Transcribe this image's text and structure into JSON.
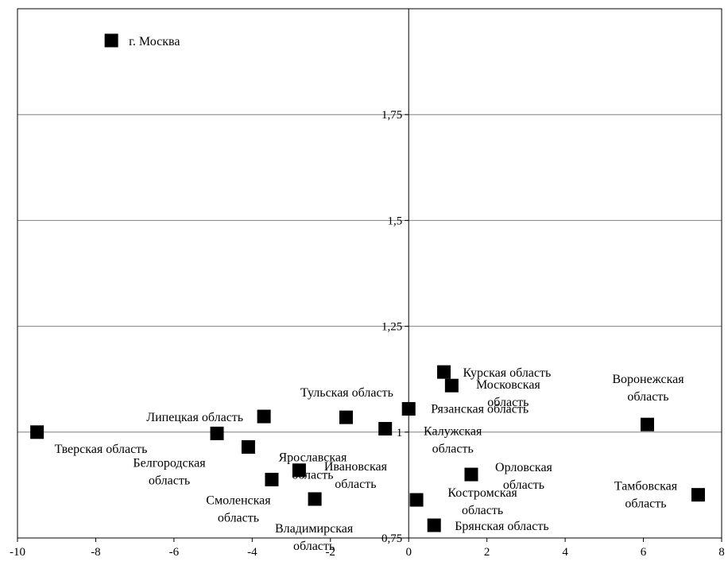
{
  "chart_data": {
    "type": "scatter",
    "title": "",
    "xlabel": "",
    "ylabel": "",
    "xlim": [
      -10,
      8
    ],
    "ylim": [
      0.75,
      2.0
    ],
    "x_ticks": [
      -10,
      -8,
      -6,
      -4,
      -2,
      0,
      2,
      4,
      6,
      8
    ],
    "x_tick_labels": [
      "-10",
      "-8",
      "-6",
      "-4",
      "-2",
      "0",
      "2",
      "4",
      "6",
      "8"
    ],
    "y_ticks": [
      0.75,
      1.0,
      1.25,
      1.5,
      1.75
    ],
    "y_tick_labels": [
      "0,75",
      "1",
      "1,25",
      "1,5",
      "1,75"
    ],
    "grid": "horizontal",
    "marker": "square",
    "marker_color": "#000000",
    "points": [
      {
        "label": "г. Москва",
        "x": -7.6,
        "y": 1.925,
        "label_lines": [
          "г. Москва"
        ]
      },
      {
        "label": "Тверская область",
        "x": -9.5,
        "y": 1.0,
        "label_lines": [
          "Тверская область"
        ]
      },
      {
        "label": "Липецкая область",
        "x": -3.7,
        "y": 1.037,
        "label_lines": [
          "Липецкая область"
        ]
      },
      {
        "label": "Белгородская область",
        "x": -4.9,
        "y": 0.997,
        "label_lines": [
          "Белгородская",
          "область"
        ]
      },
      {
        "label": "Ярославская область",
        "x": -4.1,
        "y": 0.965,
        "label_lines": [
          "Ярославская",
          "область"
        ]
      },
      {
        "label": "Смоленская область",
        "x": -3.5,
        "y": 0.888,
        "label_lines": [
          "Смоленская",
          "область"
        ]
      },
      {
        "label": "Ивановская область",
        "x": -2.8,
        "y": 0.91,
        "label_lines": [
          "Ивановская",
          "область"
        ]
      },
      {
        "label": "Владимирская область",
        "x": -2.4,
        "y": 0.842,
        "label_lines": [
          "Владимирская",
          "область"
        ]
      },
      {
        "label": "Тульская область",
        "x": -1.6,
        "y": 1.035,
        "label_lines": [
          "Тульская область"
        ]
      },
      {
        "label": "Калужская область",
        "x": -0.6,
        "y": 1.008,
        "label_lines": [
          "Калужская",
          "область"
        ]
      },
      {
        "label": "Рязанская область",
        "x": 0.0,
        "y": 1.055,
        "label_lines": [
          "Рязанская область"
        ]
      },
      {
        "label": "Курская область",
        "x": 0.9,
        "y": 1.142,
        "label_lines": [
          "Курская область"
        ]
      },
      {
        "label": "Московская область",
        "x": 1.1,
        "y": 1.11,
        "label_lines": [
          "Московская",
          "область"
        ]
      },
      {
        "label": "Костромская область",
        "x": 0.2,
        "y": 0.84,
        "label_lines": [
          "Костромская",
          "область"
        ]
      },
      {
        "label": "Брянская область",
        "x": 0.65,
        "y": 0.78,
        "label_lines": [
          "Брянская область"
        ]
      },
      {
        "label": "Орловская область",
        "x": 1.6,
        "y": 0.9,
        "label_lines": [
          "Орловская",
          "область"
        ]
      },
      {
        "label": "Воронежская область",
        "x": 6.1,
        "y": 1.018,
        "label_lines": [
          "Воронежская",
          "область"
        ]
      },
      {
        "label": "Тамбовская область",
        "x": 7.4,
        "y": 0.852,
        "label_lines": [
          "Тамбовская",
          "область"
        ]
      }
    ]
  }
}
